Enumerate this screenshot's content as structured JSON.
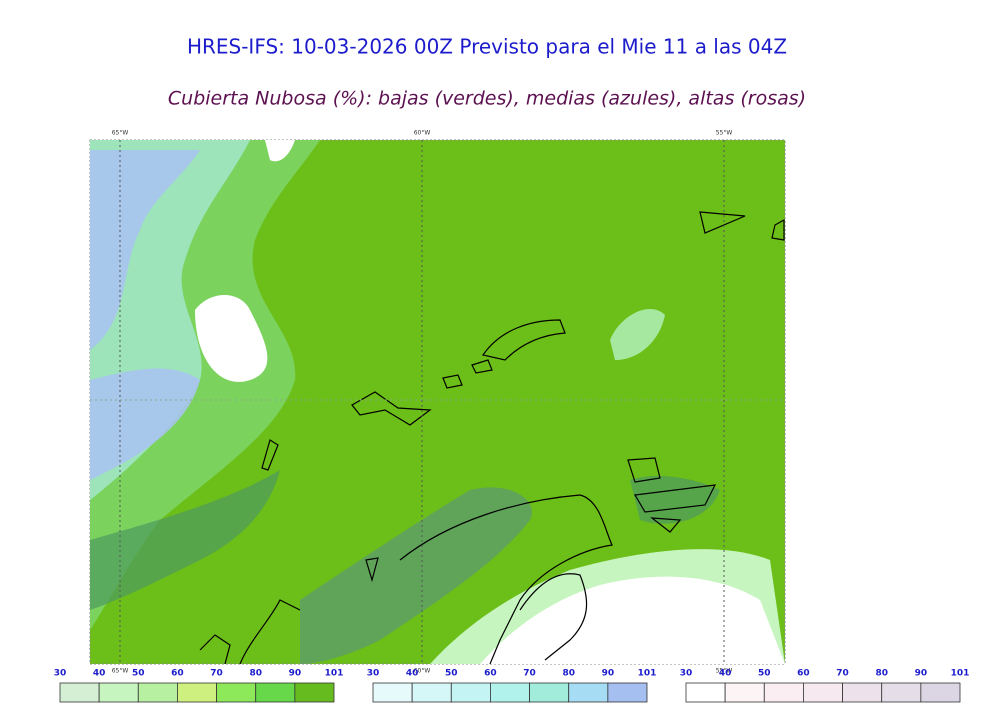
{
  "header": {
    "title": "HRES-IFS: 10-03-2026 00Z Previsto para el Mie 11 a las 04Z",
    "subtitle": "Cubierta Nubosa (%): bajas (verdes), medias (azules), altas (rosas)"
  },
  "map": {
    "longitude_labels_top": [
      "65°W",
      "60°W",
      "55°W"
    ],
    "longitude_labels_bottom": [
      "65°W",
      "60°W",
      "55°W"
    ]
  },
  "legends": [
    {
      "ticks": [
        30,
        40,
        50,
        60,
        70,
        80,
        90,
        101
      ],
      "colors": [
        "#d4efd4",
        "#c7f5c0",
        "#b7f0a0",
        "#cdf07f",
        "#8de95a",
        "#66d84a",
        "#66bb1e"
      ]
    },
    {
      "ticks": [
        30,
        40,
        50,
        60,
        70,
        80,
        90,
        101
      ],
      "colors": [
        "#e6f9fb",
        "#d6f7f8",
        "#c4f4f4",
        "#b2f2ec",
        "#a2ecdc",
        "#a6dcf4",
        "#a4bff0"
      ]
    },
    {
      "ticks": [
        30,
        40,
        50,
        60,
        70,
        80,
        90,
        101
      ],
      "colors": [
        "#ffffff",
        "#fdf4f6",
        "#fbeef2",
        "#f6e9f0",
        "#ede2ec",
        "#e5dde8",
        "#dcd6e4"
      ]
    }
  ]
}
